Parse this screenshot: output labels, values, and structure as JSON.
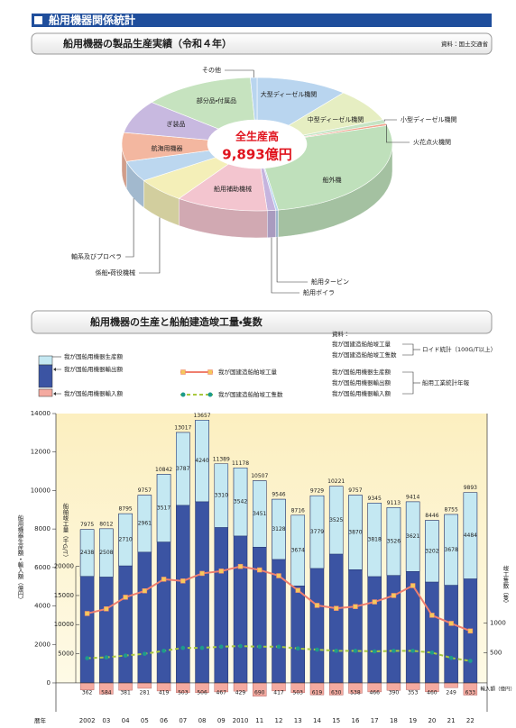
{
  "header": {
    "title": "船用機器関係統計"
  },
  "chart_data": [
    {
      "type": "pie",
      "title": "船用機器の製品生産実績（令和４年）",
      "source": "資料：国土交通省",
      "center_label": "全生産高",
      "total_label": "9,893億円",
      "categories": [
        "大型ディーゼル機関",
        "中型ディーゼル機関",
        "小型ディーゼル機関",
        "火花点火機関",
        "船外機",
        "船用タービン",
        "船用ボイラ",
        "船用補助機械",
        "係船・荷役機械",
        "軸系及びプロペラ",
        "航海用機器",
        "ぎ装品",
        "部分品・付属品",
        "その他"
      ],
      "values": [
        11,
        8,
        1,
        0.5,
        27,
        0.3,
        1,
        11,
        6,
        5,
        7,
        8,
        13.4,
        0.8
      ],
      "colors": [
        "#b9d5ef",
        "#e6eec2",
        "#c6e4c4",
        "#f2a48e",
        "#bfe0bb",
        "#b9d5ef",
        "#c5b4de",
        "#f3c5cf",
        "#f4efb8",
        "#bcd7ef",
        "#f3b7a0",
        "#c8b9e0",
        "#c6e3bf",
        "#b9d5ef"
      ]
    },
    {
      "type": "combo",
      "title": "船用機器の生産と船舶建造竣工量・隻数",
      "categories": [
        "2002",
        "03",
        "04",
        "05",
        "06",
        "07",
        "08",
        "09",
        "2010",
        "11",
        "12",
        "13",
        "14",
        "15",
        "16",
        "17",
        "18",
        "19",
        "20",
        "21",
        "22"
      ],
      "series": [
        {
          "name": "我が国船用機器生産額",
          "color": "#3b54a3",
          "values": [
            7975,
            8012,
            8795,
            9757,
            10842,
            13017,
            13657,
            11389,
            11178,
            10507,
            9546,
            8716,
            9729,
            10221,
            9757,
            9345,
            9113,
            9414,
            8446,
            8755,
            9893
          ]
        },
        {
          "name": "我が国船用機器輸出額",
          "color": "#c4e8f2",
          "values": [
            2438,
            2508,
            2710,
            2961,
            3517,
            3787,
            4240,
            3310,
            3542,
            3451,
            3128,
            3674,
            3779,
            3525,
            3870,
            3818,
            3526,
            3621,
            3202,
            3678,
            4484
          ]
        },
        {
          "name": "我が国船用機器輸入額",
          "color": "#f4aaa0",
          "values": [
            362,
            584,
            381,
            281,
            419,
            503,
            506,
            467,
            429,
            690,
            417,
            503,
            619,
            630,
            538,
            466,
            390,
            353,
            460,
            249,
            633
          ]
        },
        {
          "name": "我が国建造船舶竣工量",
          "color": "#ef7f6e",
          "marker_color": "#f5c85c",
          "axis": "y2",
          "values": [
            11900,
            12700,
            14700,
            15800,
            17800,
            17500,
            18800,
            19200,
            20000,
            19400,
            18400,
            15900,
            13300,
            12800,
            13100,
            13900,
            15000,
            16700,
            11600,
            10200,
            8900
          ]
        },
        {
          "name": "我が国建造船舶竣工隻数",
          "color": "#a9c93e",
          "marker_color": "#1d9b8c",
          "axis": "y3",
          "dashed": true,
          "values": [
            406,
            420,
            450,
            480,
            530,
            580,
            580,
            600,
            610,
            600,
            600,
            570,
            550,
            530,
            530,
            520,
            530,
            530,
            500,
            410,
            360
          ]
        }
      ],
      "ylim": [
        -1500,
        14000
      ],
      "yticks": [
        0,
        2000,
        4000,
        6000,
        8000,
        10000,
        12000,
        14000
      ],
      "y2lim": [
        -5000,
        46300
      ],
      "y2ticks": [
        5000,
        10000,
        15000,
        20000
      ],
      "y3lim": [
        -500,
        4540
      ],
      "y3ticks": [
        500,
        1000
      ],
      "ylabel": "船用機器生産額・輸入額（億円）",
      "y2label": "船舶竣工量（千G/T）",
      "y3label": "竣工隻数（隻）",
      "import_label": "輸入額（億円）",
      "xlabel": "暦年",
      "source_label": "資料：",
      "source_groups": [
        "ロイド統計（100G/T以上）",
        "船用工業統計年報"
      ]
    }
  ]
}
